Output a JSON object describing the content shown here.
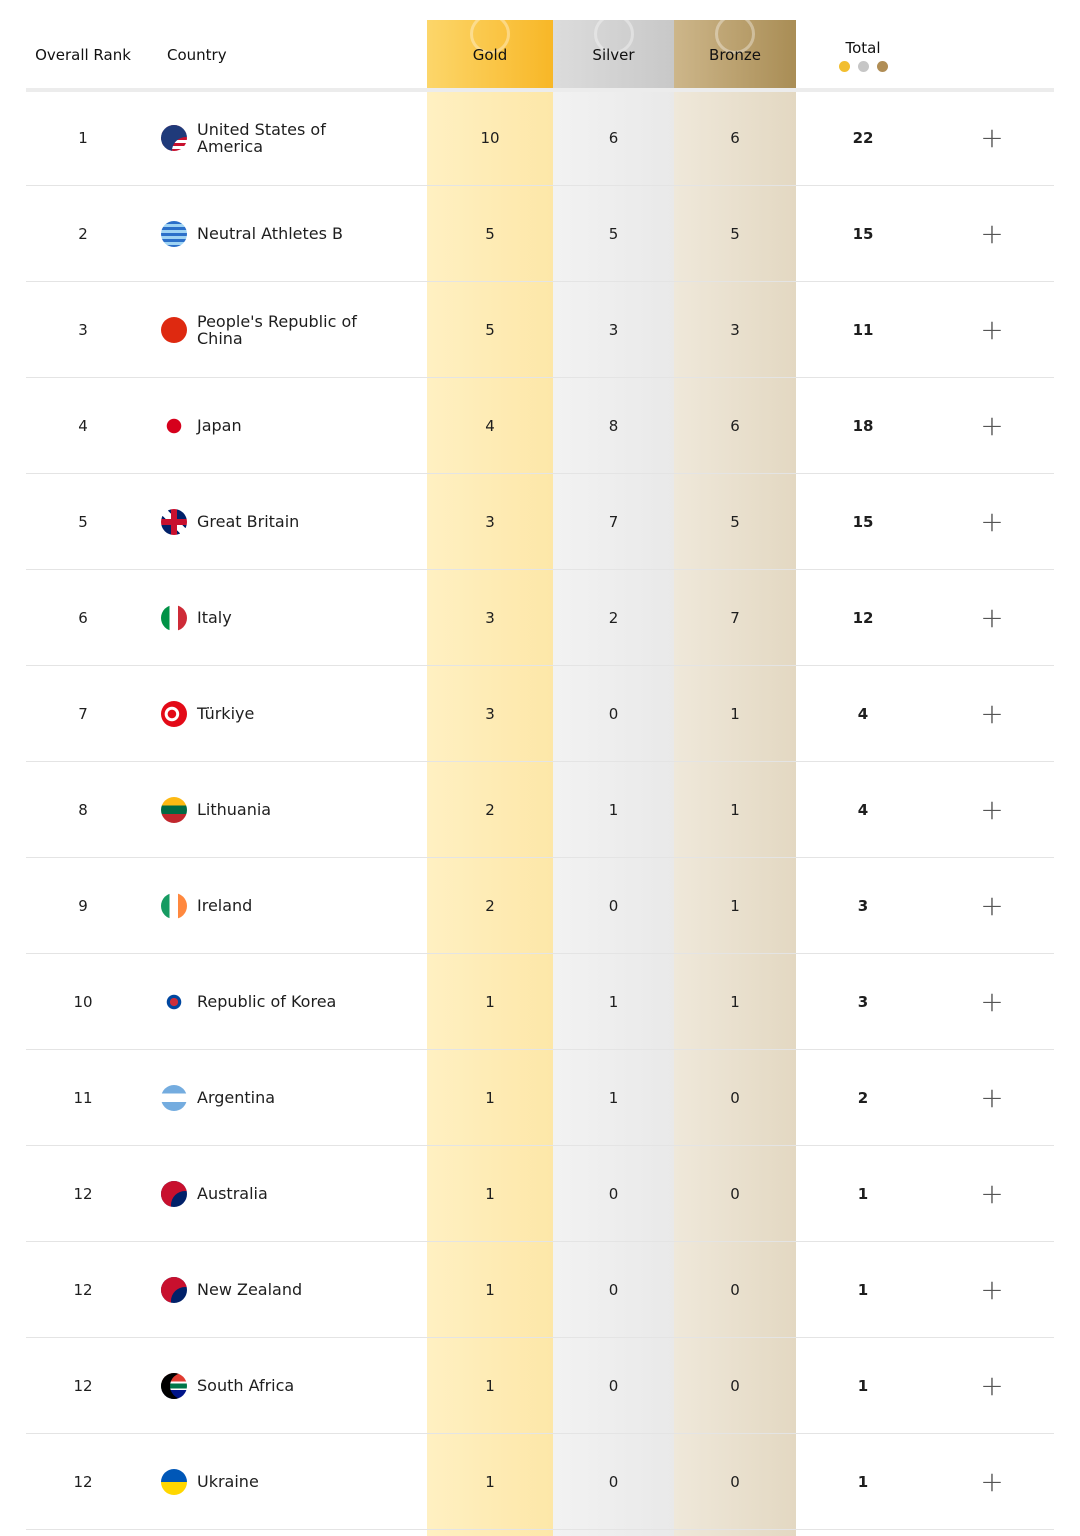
{
  "header": {
    "rank_label": "Overall Rank",
    "country_label": "Country",
    "gold_label": "Gold",
    "silver_label": "Silver",
    "bronze_label": "Bronze",
    "total_label": "Total"
  },
  "expand_symbol": "+",
  "rows": [
    {
      "rank": "1",
      "country": "United States of America",
      "gold": "10",
      "silver": "6",
      "bronze": "6",
      "total": "22",
      "flag": "usa"
    },
    {
      "rank": "2",
      "country": "Neutral Athletes B",
      "gold": "5",
      "silver": "5",
      "bronze": "5",
      "total": "15",
      "flag": "ain"
    },
    {
      "rank": "3",
      "country": "People's Republic of China",
      "gold": "5",
      "silver": "3",
      "bronze": "3",
      "total": "11",
      "flag": "chn"
    },
    {
      "rank": "4",
      "country": "Japan",
      "gold": "4",
      "silver": "8",
      "bronze": "6",
      "total": "18",
      "flag": "jpn"
    },
    {
      "rank": "5",
      "country": "Great Britain",
      "gold": "3",
      "silver": "7",
      "bronze": "5",
      "total": "15",
      "flag": "gbr"
    },
    {
      "rank": "6",
      "country": "Italy",
      "gold": "3",
      "silver": "2",
      "bronze": "7",
      "total": "12",
      "flag": "ita"
    },
    {
      "rank": "7",
      "country": "Türkiye",
      "gold": "3",
      "silver": "0",
      "bronze": "1",
      "total": "4",
      "flag": "tur"
    },
    {
      "rank": "8",
      "country": "Lithuania",
      "gold": "2",
      "silver": "1",
      "bronze": "1",
      "total": "4",
      "flag": "ltu"
    },
    {
      "rank": "9",
      "country": "Ireland",
      "gold": "2",
      "silver": "0",
      "bronze": "1",
      "total": "3",
      "flag": "irl"
    },
    {
      "rank": "10",
      "country": "Republic of Korea",
      "gold": "1",
      "silver": "1",
      "bronze": "1",
      "total": "3",
      "flag": "kor"
    },
    {
      "rank": "11",
      "country": "Argentina",
      "gold": "1",
      "silver": "1",
      "bronze": "0",
      "total": "2",
      "flag": "arg"
    },
    {
      "rank": "12",
      "country": "Australia",
      "gold": "1",
      "silver": "0",
      "bronze": "0",
      "total": "1",
      "flag": "aus"
    },
    {
      "rank": "12",
      "country": "New Zealand",
      "gold": "1",
      "silver": "0",
      "bronze": "0",
      "total": "1",
      "flag": "nzl"
    },
    {
      "rank": "12",
      "country": "South Africa",
      "gold": "1",
      "silver": "0",
      "bronze": "0",
      "total": "1",
      "flag": "rsa"
    },
    {
      "rank": "12",
      "country": "Ukraine",
      "gold": "1",
      "silver": "0",
      "bronze": "0",
      "total": "1",
      "flag": "ukr"
    }
  ]
}
